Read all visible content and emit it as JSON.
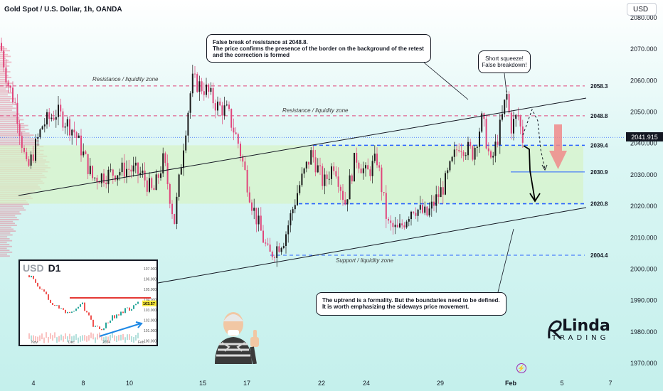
{
  "title": "Gold Spot / U.S. Dollar, 1h, OANDA",
  "currency_button": "USD",
  "current_price": "2041.915",
  "callouts": {
    "false_break": [
      "False break of resistance at 2048.8.",
      "The price confirms the presence of the border on the background of the retest",
      "and the correction is formed"
    ],
    "short_squeeze": [
      "Short squeeze!",
      "False breakdown!"
    ],
    "uptrend": [
      "The uptrend is a formality. But the boundaries need to be defined.",
      "It is worth emphasizing the sideways price movement."
    ]
  },
  "zones": {
    "resistance_upper": "Resistance / liquidity zone",
    "resistance_mid": "Resistance / liquidity zone",
    "support": "Support / liquidity zone"
  },
  "logo": {
    "line1": "Linda",
    "line2": "TRADING",
    "initial": "R"
  },
  "inset": {
    "symbol": "USD",
    "timeframe": "D1",
    "price_label": "103.57",
    "ticks": [
      "107.000",
      "106.000",
      "105.000",
      "104.000",
      "103.000",
      "102.000",
      "101.000",
      "100.000"
    ],
    "xlabels": [
      "Nov",
      "Dec",
      "2024",
      "Feb"
    ]
  },
  "chart_data": {
    "type": "candlestick",
    "title": "Gold Spot / U.S. Dollar, 1h, OANDA",
    "ylim": [
      1965,
      2095
    ],
    "y_ticks": [
      1970,
      1980,
      1990,
      2000,
      2010,
      2020,
      2030,
      2040,
      2050,
      2060,
      2070,
      2080
    ],
    "x_ticks": [
      "4",
      "8",
      "10",
      "15",
      "17",
      "22",
      "24",
      "29",
      "Feb",
      "5",
      "7"
    ],
    "levels": [
      {
        "value": 2058.3,
        "label": "2058.3",
        "style": "dashed",
        "color": "#e0457b"
      },
      {
        "value": 2048.8,
        "label": "2048.8",
        "style": "dashed",
        "color": "#e0457b"
      },
      {
        "value": 2039.4,
        "label": "2039.4",
        "style": "dashed",
        "color": "#2962ff"
      },
      {
        "value": 2030.9,
        "label": "2030.9",
        "style": "solid",
        "color": "#2962ff"
      },
      {
        "value": 2020.8,
        "label": "2020.8",
        "style": "dashed",
        "color": "#2962ff"
      },
      {
        "value": 2004.4,
        "label": "2004.4",
        "style": "dashed",
        "color": "#2962ff"
      }
    ],
    "current_price": 2041.915,
    "path_keypoints": [
      [
        0,
        2072
      ],
      [
        10,
        2060
      ],
      [
        22,
        2052
      ],
      [
        38,
        2031
      ],
      [
        60,
        2046
      ],
      [
        80,
        2050
      ],
      [
        104,
        2044
      ],
      [
        118,
        2036
      ],
      [
        130,
        2029
      ],
      [
        150,
        2030
      ],
      [
        180,
        2032
      ],
      [
        200,
        2030
      ],
      [
        215,
        2024
      ],
      [
        230,
        2035
      ],
      [
        245,
        2015
      ],
      [
        258,
        2040
      ],
      [
        270,
        2060
      ],
      [
        290,
        2057
      ],
      [
        305,
        2052
      ],
      [
        320,
        2050
      ],
      [
        335,
        2040
      ],
      [
        355,
        2020
      ],
      [
        378,
        2004
      ],
      [
        400,
        2010
      ],
      [
        420,
        2026
      ],
      [
        438,
        2037
      ],
      [
        455,
        2027
      ],
      [
        470,
        2034
      ],
      [
        485,
        2021
      ],
      [
        500,
        2036
      ],
      [
        515,
        2030
      ],
      [
        530,
        2035
      ],
      [
        545,
        2014
      ],
      [
        560,
        2012
      ],
      [
        580,
        2020
      ],
      [
        600,
        2017
      ],
      [
        625,
        2027
      ],
      [
        645,
        2040
      ],
      [
        665,
        2037
      ],
      [
        678,
        2048
      ],
      [
        690,
        2033
      ],
      [
        705,
        2047
      ],
      [
        712,
        2056
      ],
      [
        718,
        2045
      ],
      [
        728,
        2049
      ],
      [
        737,
        2039
      ]
    ]
  }
}
